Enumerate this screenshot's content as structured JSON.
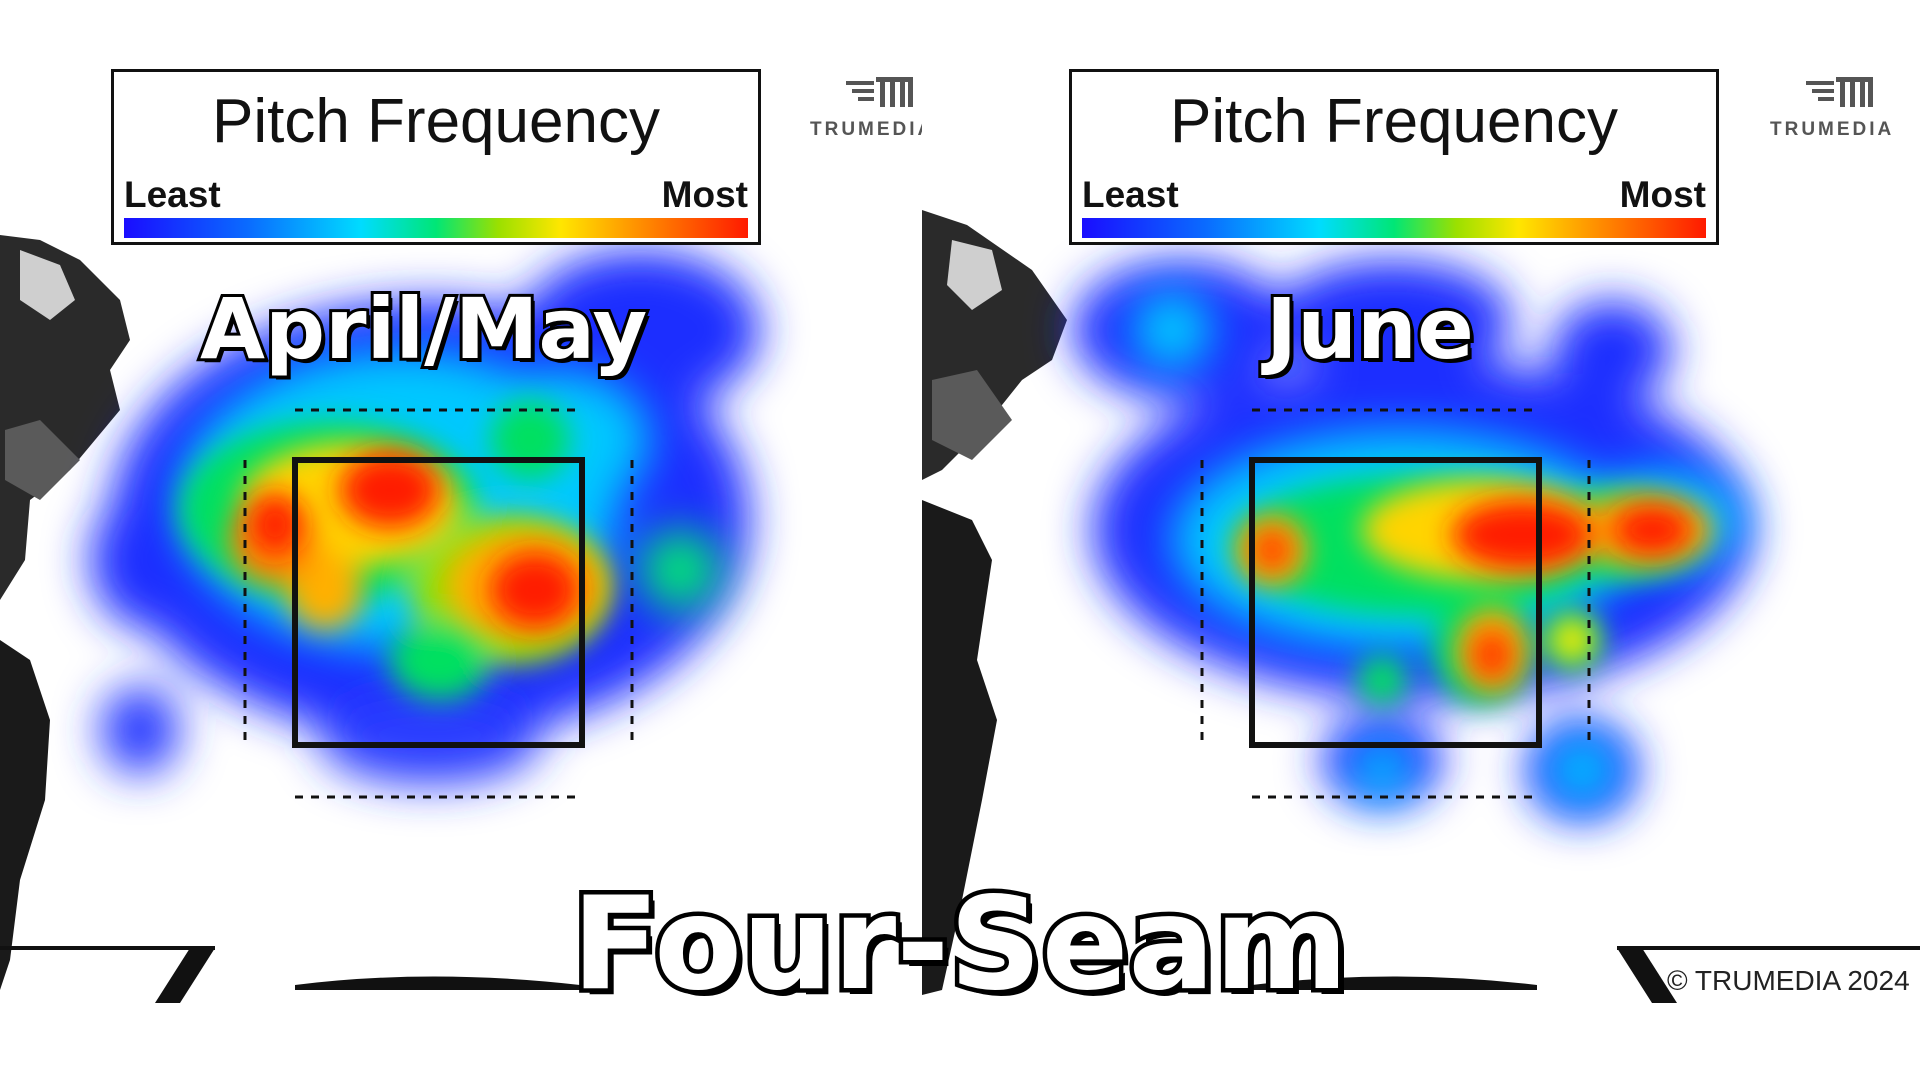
{
  "legend": {
    "title": "Pitch Frequency",
    "least_label": "Least",
    "most_label": "Most",
    "colors": [
      "#1a0dff",
      "#0a6cff",
      "#00dcff",
      "#00e676",
      "#9be000",
      "#ffe600",
      "#ff8c00",
      "#ff1a00"
    ]
  },
  "logo_text": "TRUMEDIA",
  "copyright": "© TRUMEDIA 2024",
  "main_title": "Four-Seam",
  "chart_data": [
    {
      "type": "heatmap",
      "title": "April/May",
      "legend_title": "Pitch Frequency",
      "scale": [
        "Least",
        "Most"
      ],
      "hot_zones": [
        {
          "zone": "top-left of strike zone",
          "level": "most"
        },
        {
          "zone": "middle-right of strike zone",
          "level": "most"
        },
        {
          "zone": "left edge outside strike zone",
          "level": "high"
        },
        {
          "zone": "bottom of strike zone",
          "level": "low"
        }
      ]
    },
    {
      "type": "heatmap",
      "title": "June",
      "legend_title": "Pitch Frequency",
      "scale": [
        "Least",
        "Most"
      ],
      "hot_zones": [
        {
          "zone": "upper-middle of strike zone",
          "level": "most"
        },
        {
          "zone": "right edge outside strike zone",
          "level": "most"
        },
        {
          "zone": "lower-right of strike zone",
          "level": "high"
        },
        {
          "zone": "high above strike zone",
          "level": "low"
        }
      ]
    }
  ]
}
